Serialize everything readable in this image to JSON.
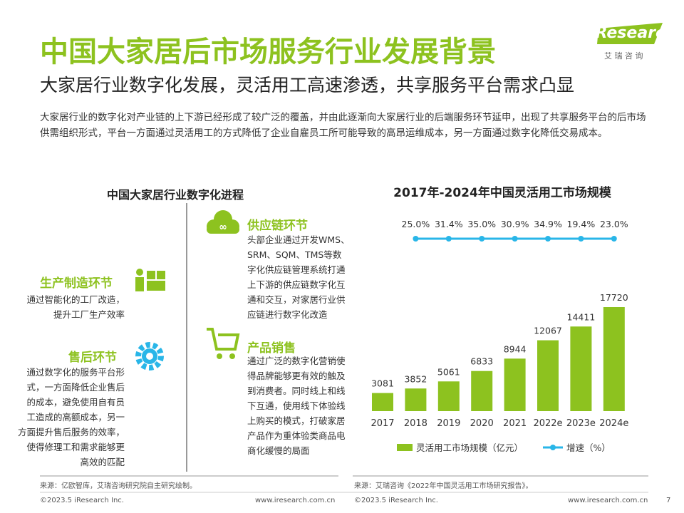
{
  "header": {
    "title": "中国大家居后市场服务行业发展背景",
    "subtitle": "大家居行业数字化发展，灵活用工高速渗透，共享服务平台需求凸显",
    "logo": "iResearch",
    "logo_sub": "艾 瑞 咨 询"
  },
  "intro": "大家居行业的数字化对产业链的上下游已经形成了较广泛的覆盖，并由此逐渐向大家居行业的后端服务环节延申，出现了共享服务平台的后市场供需组织形式，平台一方面通过灵活用工的方式降低了企业自雇员工所可能导致的高昂运维成本，另一方面通过数字化降低交易成本。",
  "left": {
    "title": "中国大家居行业数字化进程",
    "items": [
      {
        "title": "供应链环节",
        "lines": [
          "头部企业通过开发WMS、",
          "SRM、SQM、TMS等数",
          "字化供应链管理系统打通",
          "上下游的供应链数字化互",
          "通和交互，对家居行业供",
          "应链进行数字化改造"
        ]
      },
      {
        "title": "生产制造环节",
        "lines": [
          "通过智能化的工厂改造，",
          "提升工厂生产效率"
        ]
      },
      {
        "title": "产品销售",
        "lines": [
          "通过广泛的数字化营销使",
          "得品牌能够更有效的触及",
          "到消费者。同时线上和线",
          "下互通，使用线下体验线",
          "上购买的模式，打破家居",
          "产品作为重体验类商品电",
          "商化缓慢的局面"
        ]
      },
      {
        "title": "售后环节",
        "lines": [
          "通过数字化的服务平台形",
          "式，一方面降低企业售后",
          "的成本，避免使用自有员",
          "工造成的高额成本，另一",
          "方面提升售后服务的效率，",
          "使得修理工和需求能够更",
          "高效的匹配"
        ]
      }
    ]
  },
  "chart_data": {
    "type": "bar",
    "title": "2017年-2024年中国灵活用工市场规模",
    "categories": [
      "2017",
      "2018",
      "2019",
      "2020",
      "2021",
      "2022e",
      "2023e",
      "2024e"
    ],
    "series": [
      {
        "name": "灵活用工市场规模（亿元）",
        "color": "#8dc21f",
        "values": [
          3081,
          3852,
          5061,
          6833,
          8944,
          12067,
          14411,
          17720
        ]
      },
      {
        "name": "增速（%）",
        "color": "#29b6e8",
        "type": "line",
        "values": [
          null,
          25.0,
          31.4,
          35.0,
          30.9,
          34.9,
          19.4,
          23.0
        ],
        "value_labels": [
          null,
          "25.0%",
          "31.4%",
          "35.0%",
          "30.9%",
          "34.9%",
          "19.4%",
          "23.0%"
        ]
      }
    ]
  },
  "sources": [
    "来源：亿欧智库，艾瑞咨询研究院自主研究绘制。",
    "来源：艾瑞咨询《2022年中国灵活用工市场研究报告》。"
  ],
  "footer": {
    "copyright": "©2023.5 iResearch Inc.",
    "url": "www.iresearch.com.cn",
    "page": "7"
  }
}
